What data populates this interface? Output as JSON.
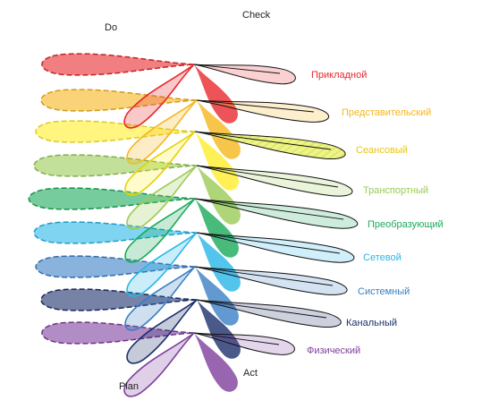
{
  "cycle": {
    "do": "Do",
    "check": "Check",
    "plan": "Plan",
    "act": "Act"
  },
  "layers": [
    {
      "label": "Прикладной",
      "color": "#e8282d"
    },
    {
      "label": "Представительский",
      "color": "#f6b61e"
    },
    {
      "label": "Сеансовый",
      "color": "#ffee2a"
    },
    {
      "label": "Транспортный",
      "color": "#9acb55"
    },
    {
      "label": "Преобразующий",
      "color": "#1aaa5a"
    },
    {
      "label": "Сетевой",
      "color": "#28b7e8"
    },
    {
      "label": "Системный",
      "color": "#3a7fc4"
    },
    {
      "label": "Канальный",
      "color": "#1b2f6b"
    },
    {
      "label": "Физический",
      "color": "#7f3f9e"
    }
  ]
}
